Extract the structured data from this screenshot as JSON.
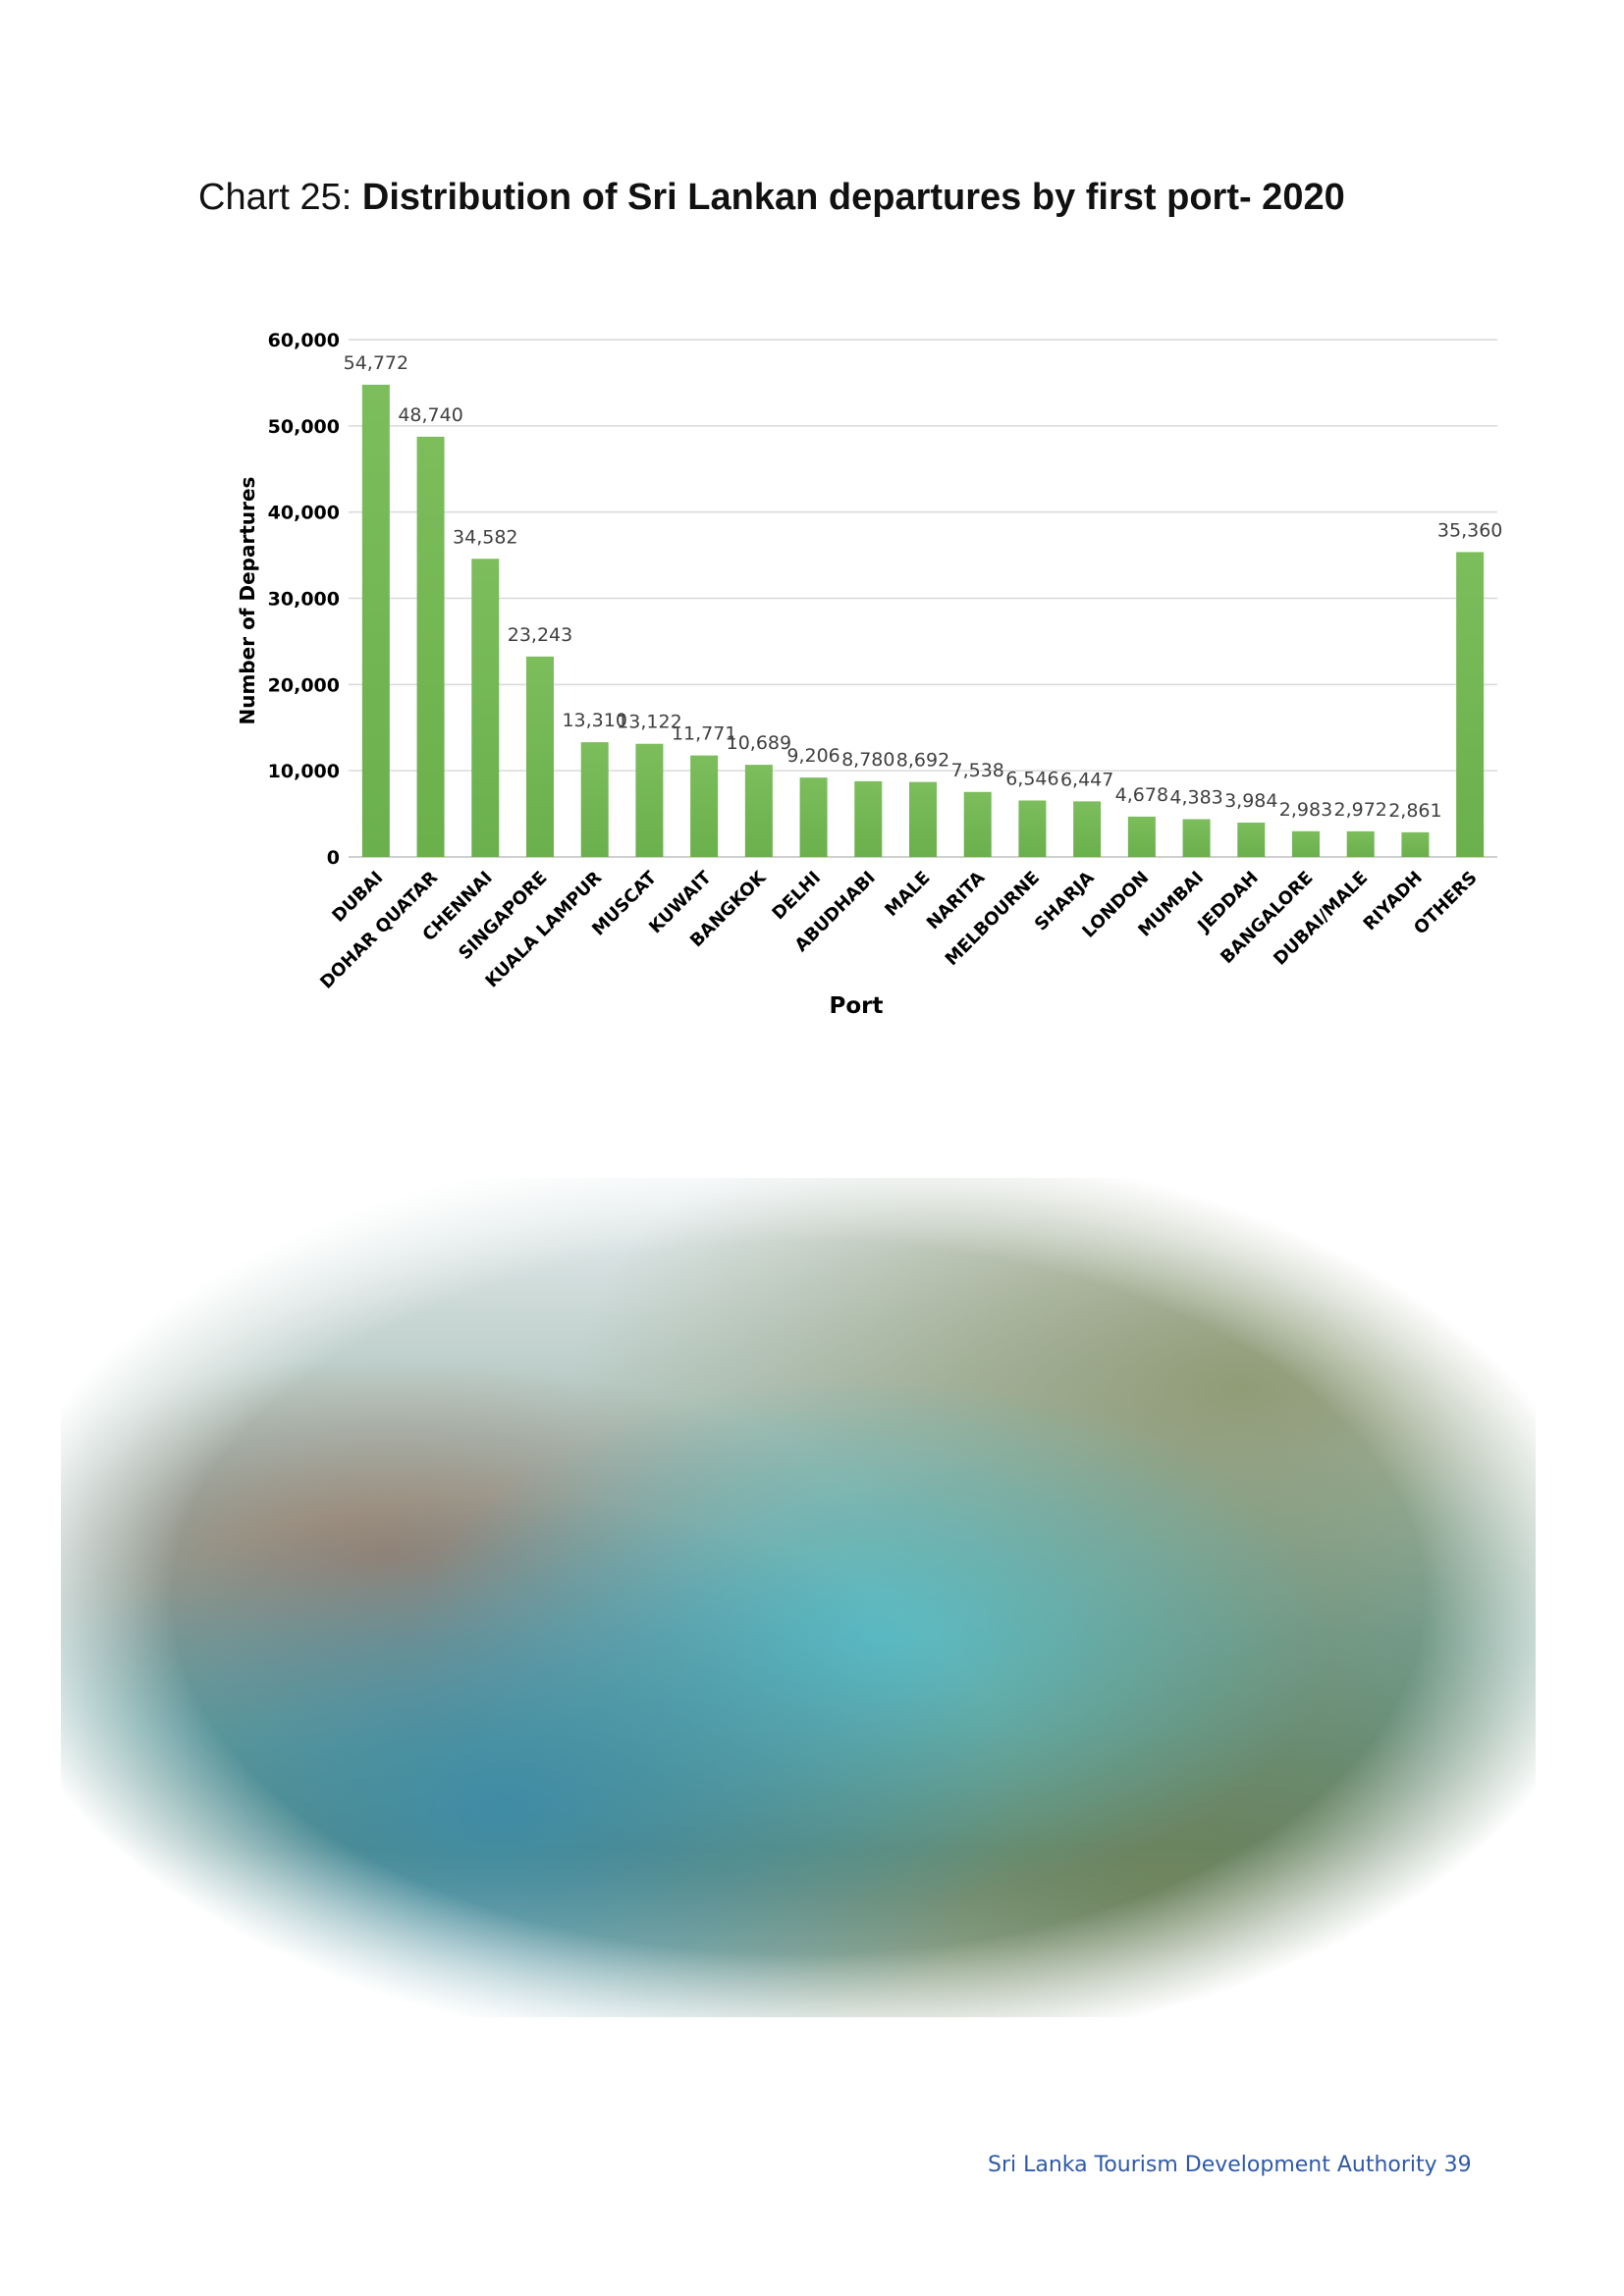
{
  "page": {
    "heading_prefix": "Chart 25: ",
    "heading_bold": "Distribution of Sri Lankan departures by first port- 2020",
    "footer": "Sri Lanka Tourism Development Authority 39",
    "photo_alt": "Aerial view of Colombo harbour"
  },
  "chart_data": {
    "type": "bar",
    "title": "Distribution of Sri Lankan departures by first port- 2020",
    "xlabel": "Port",
    "ylabel": "Number of Departures",
    "ylim": [
      0,
      60000
    ],
    "yticks": [
      "0",
      "10,000",
      "20,000",
      "30,000",
      "40,000",
      "50,000",
      "60,000"
    ],
    "grid": true,
    "bar_color": "#6ab04c",
    "categories": [
      "DUBAI",
      "DOHAR QUATAR",
      "CHENNAI",
      "SINGAPORE",
      "KUALA LAMPUR",
      "MUSCAT",
      "KUWAIT",
      "BANGKOK",
      "DELHI",
      "ABUDHABI",
      "MALE",
      "NARITA",
      "MELBOURNE",
      "SHARJA",
      "LONDON",
      "MUMBAI",
      "JEDDAH",
      "BANGALORE",
      "DUBAI/MALE",
      "RIYADH",
      "OTHERS"
    ],
    "values": [
      54772,
      48740,
      34582,
      23243,
      13310,
      13122,
      11771,
      10689,
      9206,
      8780,
      8692,
      7538,
      6546,
      6447,
      4678,
      4383,
      3984,
      2983,
      2972,
      2861,
      35360
    ],
    "value_labels": [
      "54,772",
      "48,740",
      "34,582",
      "23,243",
      "13,310",
      "13,122",
      "11,771",
      "10,689",
      "9,206",
      "8,780",
      "8,692",
      "7,538",
      "6,546",
      "6,447",
      "4,678",
      "4,383",
      "3,984",
      "2,983",
      "2,972",
      "2,861",
      "35,360"
    ]
  }
}
